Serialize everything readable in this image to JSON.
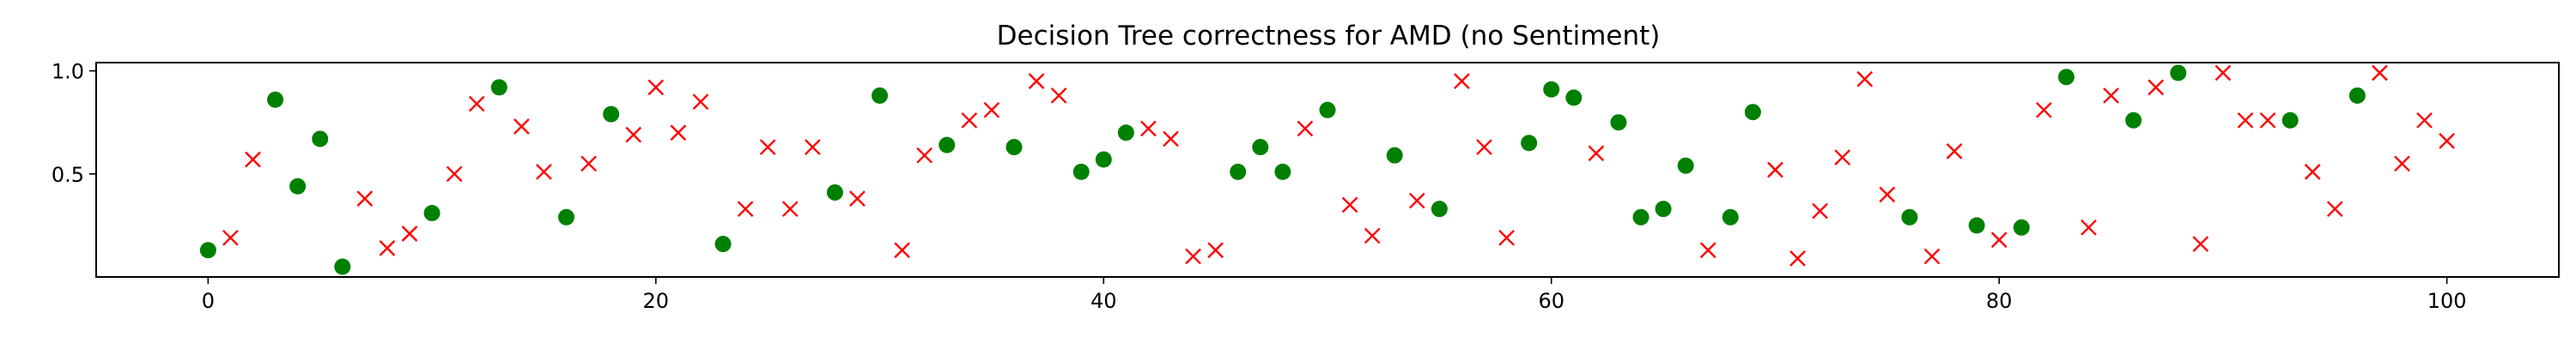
{
  "chart_data": {
    "type": "scatter",
    "title": "Decision Tree correctness for AMD (no Sentiment)",
    "xlabel": "",
    "ylabel": "",
    "xlim": [
      -5,
      105
    ],
    "ylim": [
      0.0,
      1.04
    ],
    "xticks": [
      0,
      20,
      40,
      60,
      80,
      100
    ],
    "xtick_labels": [
      "0",
      "20",
      "40",
      "60",
      "80",
      "100"
    ],
    "yticks": [
      0.5,
      1.0
    ],
    "ytick_labels": [
      "0.5",
      "1.0"
    ],
    "grid": false,
    "legend": "none",
    "series": [
      {
        "marker": "circle",
        "color": "#008000",
        "points": [
          [
            0,
            0.13
          ],
          [
            3,
            0.86
          ],
          [
            4,
            0.44
          ],
          [
            5,
            0.67
          ],
          [
            6,
            0.05
          ],
          [
            10,
            0.31
          ],
          [
            13,
            0.92
          ],
          [
            16,
            0.29
          ],
          [
            18,
            0.79
          ],
          [
            23,
            0.16
          ],
          [
            28,
            0.41
          ],
          [
            30,
            0.88
          ],
          [
            33,
            0.64
          ],
          [
            36,
            0.63
          ],
          [
            39,
            0.51
          ],
          [
            40,
            0.57
          ],
          [
            41,
            0.7
          ],
          [
            46,
            0.51
          ],
          [
            47,
            0.63
          ],
          [
            48,
            0.51
          ],
          [
            50,
            0.81
          ],
          [
            53,
            0.59
          ],
          [
            55,
            0.33
          ],
          [
            59,
            0.65
          ],
          [
            60,
            0.91
          ],
          [
            61,
            0.87
          ],
          [
            63,
            0.75
          ],
          [
            64,
            0.29
          ],
          [
            65,
            0.33
          ],
          [
            66,
            0.54
          ],
          [
            68,
            0.29
          ],
          [
            69,
            0.8
          ],
          [
            76,
            0.29
          ],
          [
            79,
            0.25
          ],
          [
            81,
            0.24
          ],
          [
            83,
            0.97
          ],
          [
            86,
            0.76
          ],
          [
            88,
            0.99
          ],
          [
            93,
            0.76
          ],
          [
            96,
            0.88
          ]
        ]
      },
      {
        "marker": "x",
        "color": "#ff0000",
        "points": [
          [
            1,
            0.19
          ],
          [
            2,
            0.57
          ],
          [
            7,
            0.38
          ],
          [
            8,
            0.14
          ],
          [
            9,
            0.21
          ],
          [
            11,
            0.5
          ],
          [
            12,
            0.84
          ],
          [
            14,
            0.73
          ],
          [
            15,
            0.51
          ],
          [
            17,
            0.55
          ],
          [
            19,
            0.69
          ],
          [
            20,
            0.92
          ],
          [
            21,
            0.7
          ],
          [
            22,
            0.85
          ],
          [
            24,
            0.33
          ],
          [
            25,
            0.63
          ],
          [
            26,
            0.33
          ],
          [
            27,
            0.63
          ],
          [
            29,
            0.38
          ],
          [
            31,
            0.13
          ],
          [
            32,
            0.59
          ],
          [
            34,
            0.76
          ],
          [
            35,
            0.81
          ],
          [
            37,
            0.95
          ],
          [
            38,
            0.88
          ],
          [
            42,
            0.72
          ],
          [
            43,
            0.67
          ],
          [
            44,
            0.1
          ],
          [
            45,
            0.13
          ],
          [
            49,
            0.72
          ],
          [
            51,
            0.35
          ],
          [
            52,
            0.2
          ],
          [
            54,
            0.37
          ],
          [
            56,
            0.95
          ],
          [
            57,
            0.63
          ],
          [
            58,
            0.19
          ],
          [
            62,
            0.6
          ],
          [
            67,
            0.13
          ],
          [
            70,
            0.52
          ],
          [
            71,
            0.09
          ],
          [
            72,
            0.32
          ],
          [
            73,
            0.58
          ],
          [
            74,
            0.96
          ],
          [
            75,
            0.4
          ],
          [
            77,
            0.1
          ],
          [
            78,
            0.61
          ],
          [
            80,
            0.18
          ],
          [
            82,
            0.81
          ],
          [
            84,
            0.24
          ],
          [
            85,
            0.88
          ],
          [
            87,
            0.92
          ],
          [
            89,
            0.16
          ],
          [
            90,
            0.99
          ],
          [
            91,
            0.76
          ],
          [
            92,
            0.76
          ],
          [
            94,
            0.51
          ],
          [
            95,
            0.33
          ],
          [
            97,
            0.99
          ],
          [
            98,
            0.55
          ],
          [
            99,
            0.76
          ],
          [
            100,
            0.66
          ]
        ]
      }
    ]
  }
}
